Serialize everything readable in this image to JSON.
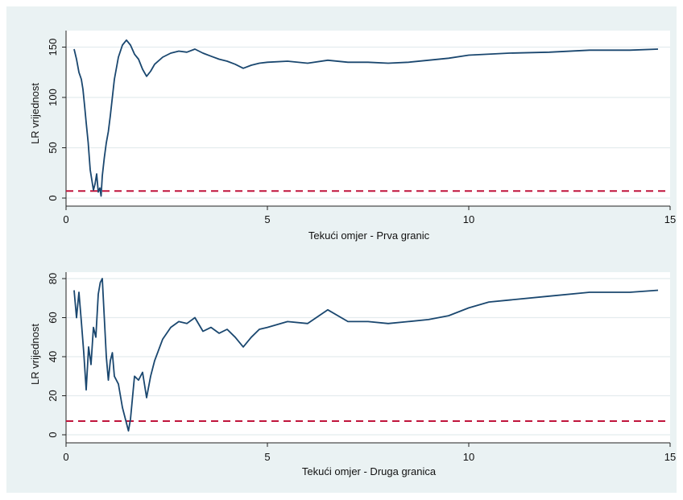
{
  "colors": {
    "background": "#ffffff",
    "outer_panel": "#eaf2f3",
    "plot_region": "#ffffff",
    "grid": "#e4ecee",
    "series": "#1a476f",
    "threshold": "#c0143c"
  },
  "chart_data": [
    {
      "type": "line",
      "title": "",
      "xlabel": "Tekući omjer - Prva granic",
      "ylabel": "LR vrijednost",
      "xlim": [
        0,
        15
      ],
      "ylim": [
        0,
        160
      ],
      "xticks": [
        0,
        5,
        10,
        15
      ],
      "yticks": [
        0,
        50,
        100,
        150
      ],
      "grid": true,
      "threshold_line": {
        "y": 7,
        "style": "dashed"
      },
      "series": [
        {
          "x": [
            0.2,
            0.26,
            0.32,
            0.38,
            0.42,
            0.46,
            0.5,
            0.55,
            0.6,
            0.64,
            0.68,
            0.72,
            0.76,
            0.8,
            0.84,
            0.87,
            0.9,
            0.95,
            1.0,
            1.05,
            1.1,
            1.15,
            1.2,
            1.3,
            1.4,
            1.5,
            1.6,
            1.7,
            1.8,
            1.9,
            2.0,
            2.1,
            2.2,
            2.4,
            2.6,
            2.8,
            3.0,
            3.2,
            3.4,
            3.6,
            3.8,
            4.0,
            4.2,
            4.4,
            4.6,
            4.8,
            5.0,
            5.5,
            6.0,
            6.5,
            7.0,
            7.5,
            8.0,
            8.5,
            9.0,
            9.5,
            10.0,
            11.0,
            12.0,
            13.0,
            14.0,
            14.7
          ],
          "y": [
            148,
            138,
            125,
            118,
            108,
            92,
            75,
            55,
            28,
            18,
            8,
            14,
            24,
            6,
            10,
            2,
            22,
            40,
            55,
            66,
            82,
            100,
            118,
            140,
            152,
            157,
            152,
            143,
            138,
            128,
            121,
            126,
            133,
            140,
            144,
            146,
            145,
            148,
            144,
            141,
            138,
            136,
            133,
            129,
            132,
            134,
            135,
            136,
            134,
            137,
            135,
            135,
            134,
            135,
            137,
            139,
            142,
            144,
            145,
            147,
            147,
            148
          ]
        }
      ]
    },
    {
      "type": "line",
      "title": "",
      "xlabel": "Tekući omjer - Druga granica",
      "ylabel": "LR vrijednost",
      "xlim": [
        0,
        15
      ],
      "ylim": [
        0,
        80
      ],
      "xticks": [
        0,
        5,
        10,
        15
      ],
      "yticks": [
        0,
        20,
        40,
        60,
        80
      ],
      "grid": true,
      "threshold_line": {
        "y": 7,
        "style": "dashed"
      },
      "series": [
        {
          "x": [
            0.2,
            0.26,
            0.32,
            0.38,
            0.44,
            0.5,
            0.56,
            0.62,
            0.68,
            0.74,
            0.8,
            0.85,
            0.9,
            0.95,
            1.0,
            1.05,
            1.1,
            1.15,
            1.2,
            1.3,
            1.4,
            1.5,
            1.55,
            1.6,
            1.7,
            1.8,
            1.9,
            2.0,
            2.1,
            2.2,
            2.4,
            2.6,
            2.8,
            3.0,
            3.2,
            3.4,
            3.6,
            3.8,
            4.0,
            4.2,
            4.4,
            4.6,
            4.8,
            5.0,
            5.5,
            6.0,
            6.5,
            7.0,
            7.5,
            8.0,
            8.5,
            9.0,
            9.5,
            10.0,
            10.5,
            11.0,
            12.0,
            13.0,
            14.0,
            14.7
          ],
          "y": [
            74,
            60,
            73,
            58,
            42,
            23,
            45,
            36,
            55,
            50,
            72,
            78,
            80,
            60,
            40,
            28,
            38,
            42,
            30,
            26,
            14,
            6,
            2,
            8,
            30,
            28,
            32,
            19,
            30,
            38,
            49,
            55,
            58,
            57,
            60,
            53,
            55,
            52,
            54,
            50,
            45,
            50,
            54,
            55,
            58,
            57,
            64,
            58,
            58,
            57,
            58,
            59,
            61,
            65,
            68,
            69,
            71,
            73,
            73,
            74
          ]
        }
      ]
    }
  ]
}
